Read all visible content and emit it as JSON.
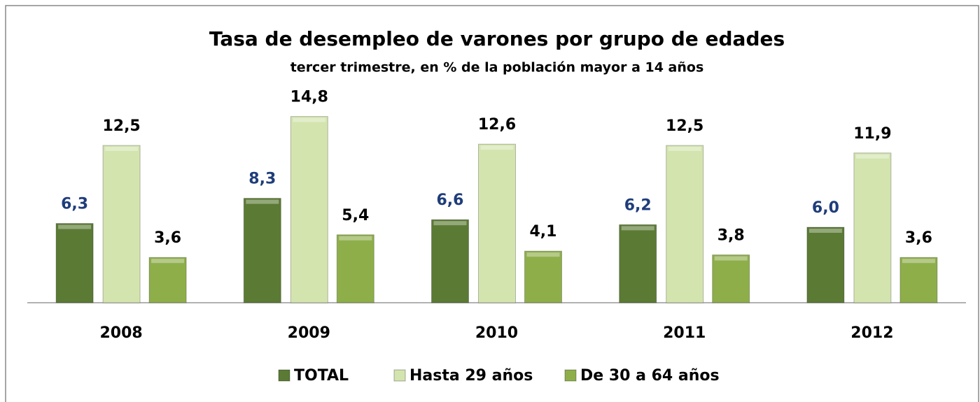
{
  "chart_data": {
    "type": "bar",
    "title": "Tasa de desempleo de varones por grupo de edades",
    "subtitle": "tercer trimestre, en % de la población mayor a 14 años",
    "categories": [
      "2008",
      "2009",
      "2010",
      "2011",
      "2012"
    ],
    "series": [
      {
        "name": "TOTAL",
        "color": "#5b7a34",
        "label_color": "#1f3d7a",
        "values": [
          6.3,
          8.3,
          6.6,
          6.2,
          6.0
        ],
        "value_labels": [
          "6,3",
          "8,3",
          "6,6",
          "6,2",
          "6,0"
        ]
      },
      {
        "name": "Hasta 29 años",
        "color": "#d3e4ae",
        "label_color": "#000000",
        "values": [
          12.5,
          14.8,
          12.6,
          12.5,
          11.9
        ],
        "value_labels": [
          "12,5",
          "14,8",
          "12,6",
          "12,5",
          "11,9"
        ]
      },
      {
        "name": "De 30 a 64 años",
        "color": "#8eae4a",
        "label_color": "#000000",
        "values": [
          3.6,
          5.4,
          4.1,
          3.8,
          3.6
        ],
        "value_labels": [
          "3,6",
          "5,4",
          "4,1",
          "3,8",
          "3,6"
        ]
      }
    ]
  }
}
